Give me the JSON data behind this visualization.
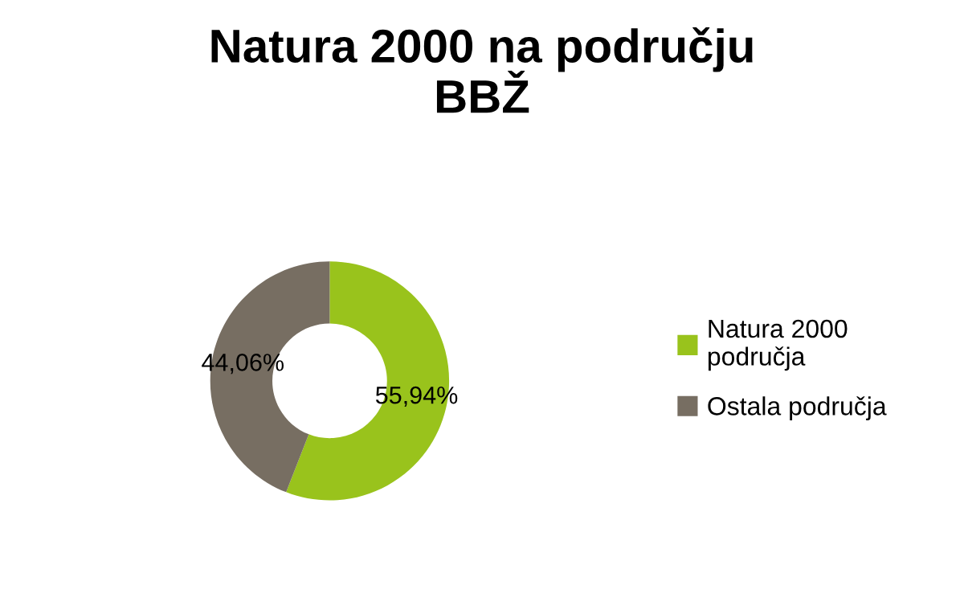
{
  "chart_data": {
    "type": "donut",
    "title": "Natura 2000 na području\nBBŽ",
    "categories": [
      "Natura 2000\npodručja",
      "Ostala područja"
    ],
    "values": [
      55.94,
      44.06
    ],
    "value_labels": [
      "55,94%",
      "44,06%"
    ],
    "colors": [
      "#99c31c",
      "#776e62"
    ],
    "legend": "right"
  }
}
